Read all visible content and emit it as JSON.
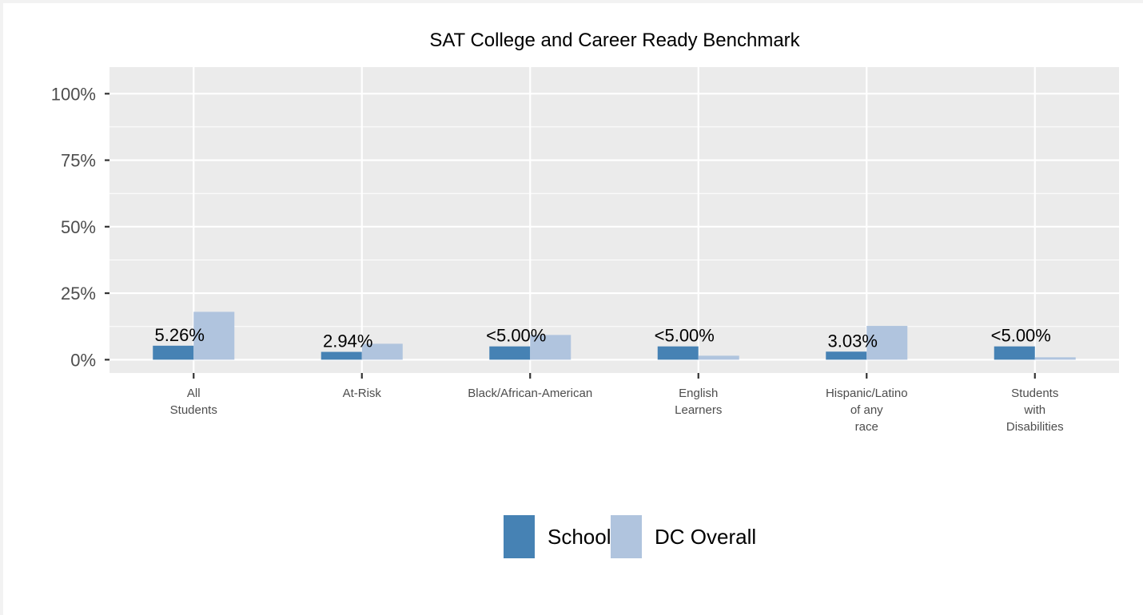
{
  "chart_data": {
    "type": "bar",
    "title": "SAT College and Career Ready Benchmark",
    "xlabel": "",
    "ylabel": "",
    "ylim": [
      -0.05,
      1.1
    ],
    "y_ticks": [
      {
        "value": 0,
        "label": "0%"
      },
      {
        "value": 0.25,
        "label": "25%"
      },
      {
        "value": 0.5,
        "label": "50%"
      },
      {
        "value": 0.75,
        "label": "75%"
      },
      {
        "value": 1.0,
        "label": "100%"
      }
    ],
    "grid": true,
    "legend_position": "bottom",
    "categories": [
      [
        "All",
        "Students"
      ],
      [
        "At-Risk"
      ],
      [
        "Black/African-American"
      ],
      [
        "English",
        "Learners"
      ],
      [
        "Hispanic/Latino",
        "of any",
        "race"
      ],
      [
        "Students",
        "with",
        "Disabilities"
      ]
    ],
    "series": [
      {
        "name": "School",
        "color": "#4682b4",
        "values": [
          0.0526,
          0.0294,
          0.05,
          0.05,
          0.0303,
          0.05
        ],
        "labels": [
          "5.26%",
          "2.94%",
          "<5.00%",
          "<5.00%",
          "3.03%",
          "<5.00%"
        ]
      },
      {
        "name": "DC Overall",
        "color": "#b0c4de",
        "values": [
          0.18,
          0.06,
          0.093,
          0.015,
          0.127,
          0.009
        ]
      }
    ]
  }
}
